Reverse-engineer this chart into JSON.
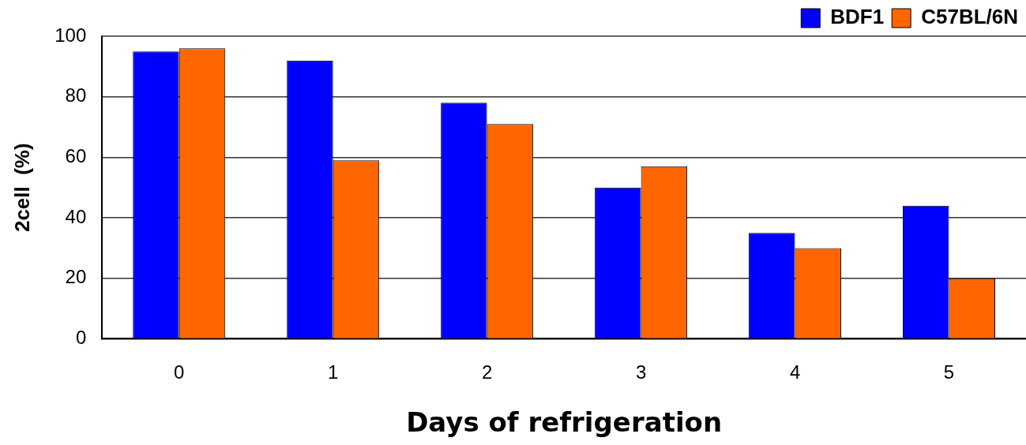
{
  "chart_data": {
    "type": "bar",
    "xlabel": "Days of refrigeration",
    "ylabel": "2cell  (%)",
    "categories": [
      "0",
      "1",
      "2",
      "3",
      "4",
      "5"
    ],
    "series": [
      {
        "name": "BDF1",
        "color": "#0000ff",
        "values": [
          95,
          92,
          78,
          50,
          35,
          44
        ]
      },
      {
        "name": "C57BL/6N",
        "color": "#ff6600",
        "values": [
          96,
          59,
          71,
          57,
          30,
          20
        ]
      }
    ],
    "ylim": [
      0,
      100
    ],
    "yticks": [
      0,
      20,
      40,
      60,
      80,
      100
    ],
    "grid": "y",
    "legend": "top right"
  }
}
